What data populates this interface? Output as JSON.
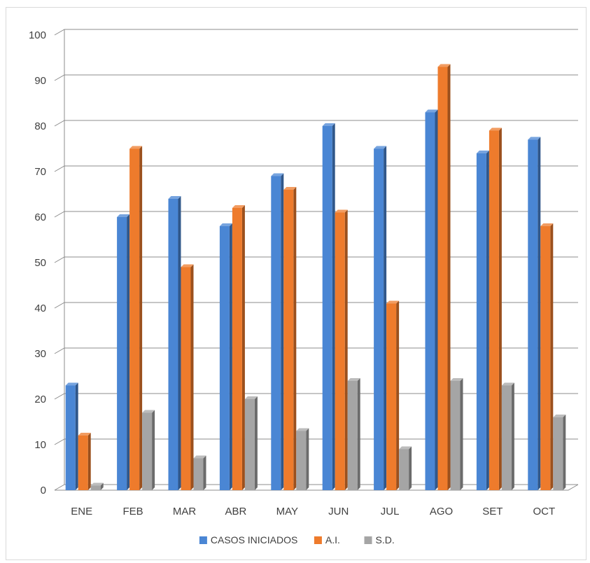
{
  "chart_data": {
    "type": "bar",
    "categories": [
      "ENE",
      "FEB",
      "MAR",
      "ABR",
      "MAY",
      "JUN",
      "JUL",
      "AGO",
      "SET",
      "OCT"
    ],
    "series": [
      {
        "name": "CASOS INICIADOS",
        "color": "#4a86d4",
        "values": [
          23,
          60,
          64,
          58,
          69,
          80,
          75,
          83,
          74,
          77
        ]
      },
      {
        "name": "A.I.",
        "color": "#ee7b2c",
        "values": [
          12,
          75,
          49,
          62,
          66,
          61,
          41,
          93,
          79,
          58
        ]
      },
      {
        "name": "S.D.",
        "color": "#a5a5a5",
        "values": [
          1,
          17,
          7,
          20,
          13,
          24,
          9,
          24,
          23,
          16
        ]
      }
    ],
    "yticks": [
      "0",
      "10",
      "20",
      "30",
      "40",
      "50",
      "60",
      "70",
      "80",
      "90",
      "100"
    ],
    "ylim": [
      0,
      100
    ],
    "grid": true,
    "legend_position": "bottom",
    "title": "",
    "xlabel": "",
    "ylabel": ""
  }
}
